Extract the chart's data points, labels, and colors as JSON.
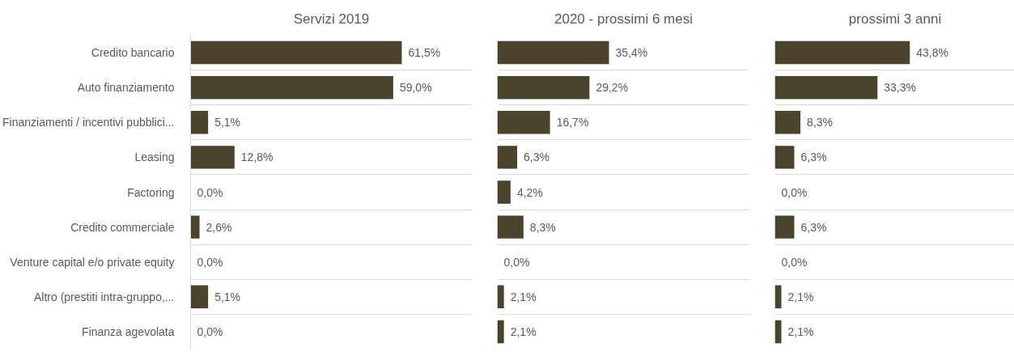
{
  "chart_data": [
    {
      "type": "bar",
      "orientation": "horizontal",
      "title": "Servizi 2019",
      "categories": [
        "Credito bancario",
        "Auto finanziamento",
        "Finanziamenti / incentivi pubblici...",
        "Leasing",
        "Factoring",
        "Credito commerciale",
        "Venture capital e/o private equity",
        "Altro (prestiti intra-gruppo,...",
        "Finanza agevolata"
      ],
      "values": [
        61.5,
        59.0,
        5.1,
        12.8,
        0.0,
        2.6,
        0.0,
        5.1,
        0.0
      ],
      "value_labels": [
        "61,5%",
        "59,0%",
        "5,1%",
        "12,8%",
        "0,0%",
        "2,6%",
        "0,0%",
        "5,1%",
        "0,0%"
      ],
      "color": "#4b432c",
      "xlim": [
        0,
        82
      ],
      "grid": "y",
      "tick_labels": "y"
    },
    {
      "type": "bar",
      "orientation": "horizontal",
      "title": "2020 - prossimi 6 mesi",
      "categories": [
        null,
        null,
        null,
        null,
        null,
        null,
        null,
        null,
        null
      ],
      "values": [
        35.4,
        29.2,
        16.7,
        6.3,
        4.2,
        8.3,
        0.0,
        2.1,
        2.1
      ],
      "value_labels": [
        "35,4%",
        "29,2%",
        "16,7%",
        "6,3%",
        "4,2%",
        "8,3%",
        "0,0%",
        "2,1%",
        "2,1%"
      ],
      "color": "#4b432c",
      "xlim": [
        0,
        80
      ],
      "grid": "y",
      "tick_labels": false
    },
    {
      "type": "bar",
      "orientation": "horizontal",
      "title": "prossimi 3 anni",
      "categories": [
        null,
        null,
        null,
        null,
        null,
        null,
        null,
        null,
        null
      ],
      "values": [
        43.8,
        33.3,
        8.3,
        6.3,
        0.0,
        6.3,
        0.0,
        2.1,
        2.1
      ],
      "value_labels": [
        "43,8%",
        "33,3%",
        "8,3%",
        "6,3%",
        "0,0%",
        "6,3%",
        "0,0%",
        "2,1%",
        "2,1%"
      ],
      "color": "#4b432c",
      "xlim": [
        0,
        78
      ],
      "grid": "y",
      "tick_labels": false
    }
  ]
}
